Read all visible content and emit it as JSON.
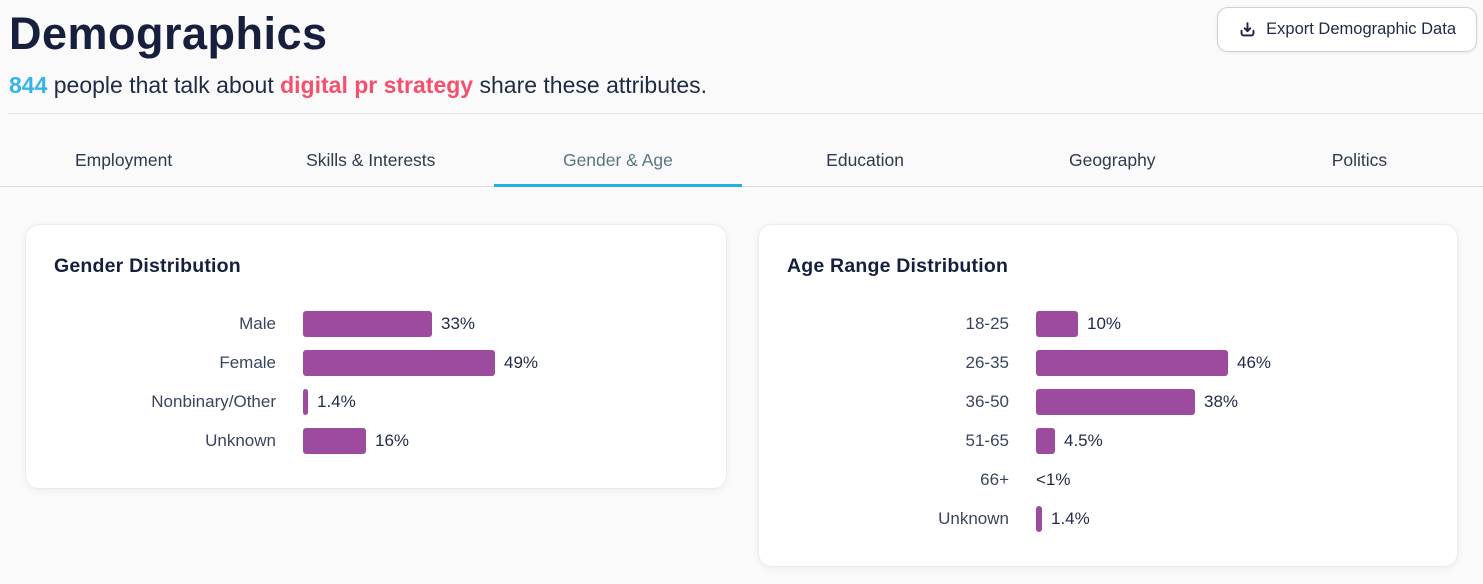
{
  "page": {
    "title": "Demographics",
    "subtitle": {
      "count": "844",
      "mid": " people that talk about ",
      "keyword": "digital pr strategy",
      "end": " share these attributes."
    },
    "export_button": {
      "label": "Export Demographic Data",
      "icon": "download-icon"
    }
  },
  "tabs": [
    {
      "label": "Employment",
      "active": false
    },
    {
      "label": "Skills & Interests",
      "active": false
    },
    {
      "label": "Gender & Age",
      "active": true
    },
    {
      "label": "Education",
      "active": false
    },
    {
      "label": "Geography",
      "active": false
    },
    {
      "label": "Politics",
      "active": false
    }
  ],
  "colors": {
    "accent_cyan": "#35b4e9",
    "tab_underline_cyan": "#27afe5",
    "keyword_red": "#f4516e",
    "bar_purple": "#9c4b9e",
    "text_dark_navy": "#161f3d"
  },
  "chart_data": [
    {
      "type": "bar",
      "orientation": "horizontal",
      "title": "Gender Distribution",
      "categories": [
        "Male",
        "Female",
        "Nonbinary/Other",
        "Unknown"
      ],
      "values": [
        33,
        49,
        1.4,
        16
      ],
      "value_labels": [
        "33%",
        "49%",
        "1.4%",
        "16%"
      ],
      "bar_color": "#9c4b9e",
      "xlim": [
        0,
        49
      ],
      "grid": false,
      "legend": false
    },
    {
      "type": "bar",
      "orientation": "horizontal",
      "title": "Age Range Distribution",
      "categories": [
        "18-25",
        "26-35",
        "36-50",
        "51-65",
        "66+",
        "Unknown"
      ],
      "values": [
        10,
        46,
        38,
        4.5,
        null,
        1.4
      ],
      "value_labels": [
        "10%",
        "46%",
        "38%",
        "4.5%",
        "<1%",
        "1.4%"
      ],
      "bar_color": "#9c4b9e",
      "xlim": [
        0,
        46
      ],
      "grid": false,
      "legend": false,
      "note": "66+ category displays <1% with no visible bar"
    }
  ]
}
